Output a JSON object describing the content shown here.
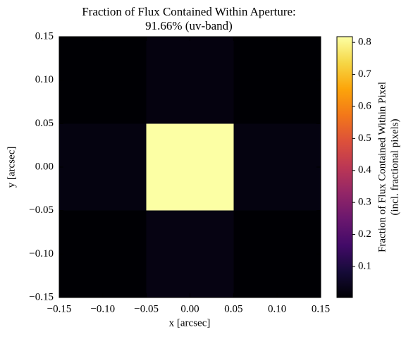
{
  "chart_data": {
    "type": "heatmap",
    "title": "Fraction of Flux Contained Within Aperture:",
    "subtitle": "91.66% (uv-band)",
    "x_label": "x [arcsec]",
    "y_label": "y [arcsec]",
    "colorbar_label": [
      "Fraction of Flux Contained Within Pixel",
      "(incl. fractional pixels)"
    ],
    "x": [
      -0.1,
      0,
      0.1
    ],
    "y": [
      0.1,
      0,
      -0.1
    ],
    "z": [
      [
        0.003,
        0.02,
        0.003
      ],
      [
        0.022,
        0.818,
        0.022
      ],
      [
        0.003,
        0.024,
        0.003
      ]
    ],
    "xlim": [
      -0.15,
      0.15
    ],
    "ylim": [
      -0.15,
      0.15
    ],
    "xticks": [
      {
        "value": -0.15,
        "label": "−0.15"
      },
      {
        "value": -0.1,
        "label": "−0.10"
      },
      {
        "value": -0.05,
        "label": "−0.05"
      },
      {
        "value": 0,
        "label": "0.00"
      },
      0.05,
      {
        "value": 0.1,
        "label": "0.10"
      },
      0.15
    ],
    "yticks": [
      {
        "value": -0.15,
        "label": "−0.15"
      },
      {
        "value": -0.1,
        "label": "−0.10"
      },
      {
        "value": -0.05,
        "label": "−0.05"
      },
      {
        "value": 0,
        "label": "0.00"
      },
      0.05,
      {
        "value": 0.1,
        "label": "0.10"
      },
      0.15
    ],
    "clim": [
      0.003,
      0.818
    ],
    "cticks": [
      0.1,
      0.2,
      0.3,
      0.4,
      0.5,
      0.6,
      0.7,
      0.8
    ],
    "colormap": [
      "#000004",
      "#160b39",
      "#420a68",
      "#6a176e",
      "#932667",
      "#bc3754",
      "#dd513a",
      "#f37819",
      "#fca50a",
      "#f6d746",
      "#fcffa4"
    ]
  }
}
